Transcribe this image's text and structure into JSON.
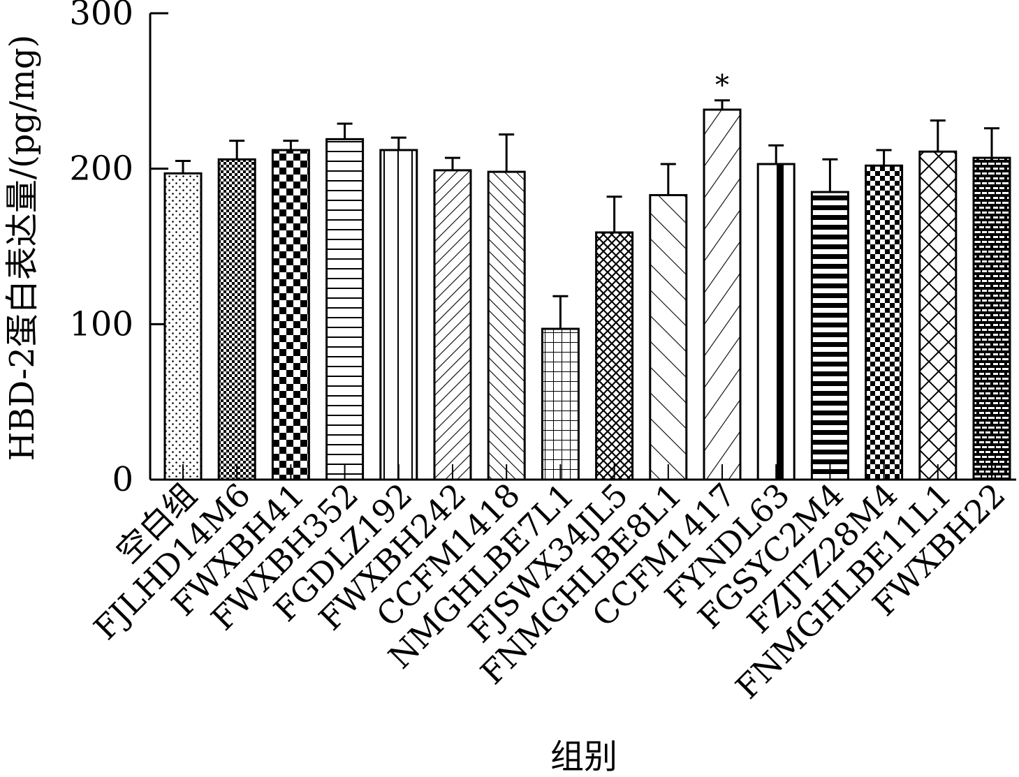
{
  "chart_data": {
    "type": "bar",
    "xlabel": "组别",
    "ylabel": "HBD-2蛋白表达量/(pg/mg)",
    "ylim": [
      0,
      300
    ],
    "yticks": [
      0,
      100,
      200,
      300
    ],
    "grid": false,
    "categories": [
      "空白组",
      "FJLHD14M6",
      "FWXBH41",
      "FWXBH352",
      "FGDLZ192",
      "FWXBH242",
      "CCFM1418",
      "NMGHLBE7L1",
      "FJSWX34JL5",
      "FNMGHLBE8L1",
      "CCFM1417",
      "FYNDL63",
      "FGSYC2M4",
      "FZJTZ28M4",
      "FNMGHLBE11L1",
      "FWXBH22"
    ],
    "values": [
      197,
      206,
      212,
      219,
      212,
      199,
      198,
      97,
      159,
      183,
      238,
      203,
      185,
      202,
      211,
      207
    ],
    "errors": [
      8,
      12,
      6,
      10,
      8,
      8,
      24,
      21,
      23,
      20,
      6,
      12,
      21,
      10,
      20,
      19
    ],
    "patterns": [
      "dots",
      "checker-small",
      "checker-large",
      "hlines",
      "vlines-wide",
      "diag-up",
      "diag-down",
      "grid",
      "crosshatch-dense",
      "diag-down-wide",
      "diag-up-wide",
      "vbars-thick",
      "hlines-thick",
      "checker-med",
      "crosshatch",
      "brick"
    ],
    "annotations": [
      {
        "category": "CCFM1417",
        "text": "*"
      }
    ]
  }
}
